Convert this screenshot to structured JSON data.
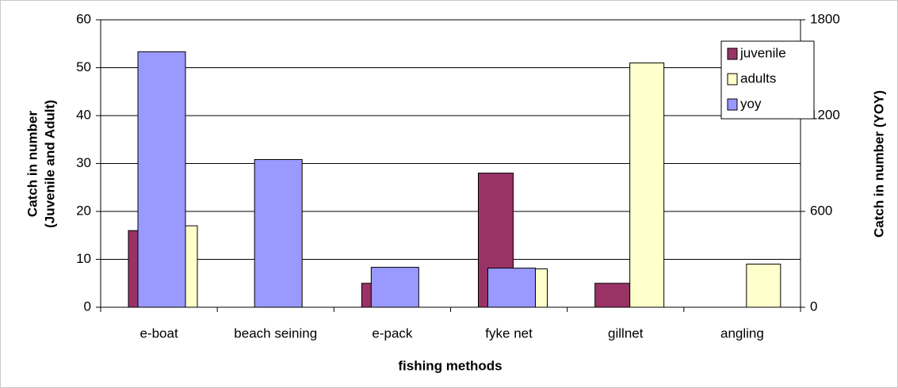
{
  "chart_data": {
    "type": "bar",
    "categories": [
      "e-boat",
      "beach seining",
      "e-pack",
      "fyke net",
      "gillnet",
      "angling"
    ],
    "series": [
      {
        "name": "juvenile",
        "color": "#993366",
        "values": [
          16,
          0,
          5,
          28,
          5,
          0
        ]
      },
      {
        "name": "adults",
        "color": "#ffffcc",
        "values": [
          17,
          0,
          0,
          8,
          51,
          9
        ]
      },
      {
        "name": "yoy",
        "color": "#9999ff",
        "axis": "y2",
        "values": [
          1600,
          925,
          250,
          245,
          0,
          0
        ]
      }
    ],
    "xlabel": "fishing methods",
    "ylabel": [
      "Catch in number",
      "(Juvenile and Adult)"
    ],
    "y2label": "Catch in number (YOY)",
    "ylim": [
      0,
      60
    ],
    "yticks": [
      0,
      10,
      20,
      30,
      40,
      50,
      60
    ],
    "y2lim": [
      0,
      1800
    ],
    "y2ticks": [
      0,
      600,
      1200,
      1800
    ],
    "grid": true,
    "legend": "upper right"
  }
}
